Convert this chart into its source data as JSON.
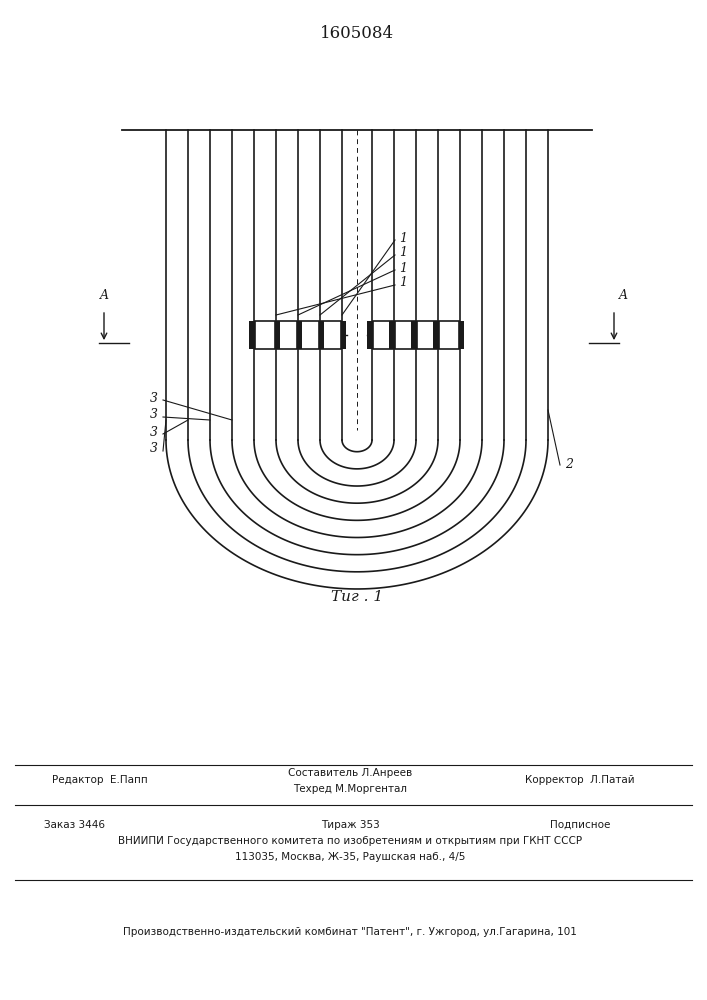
{
  "title": "1605084",
  "fig_label": "Τиг . 1",
  "background_color": "#ffffff",
  "line_color": "#1a1a1a",
  "page_width": 7.07,
  "page_height": 10.0,
  "footer_texts": {
    "editor": "Редактор  Е.Папп",
    "composer_title": "Составитель Л.Анреев",
    "techred": "Техред М.Моргентал",
    "corrector": "Корректор  Л.Патай",
    "order": "Заказ 3446",
    "tirazh": "Тираж 353",
    "podpisnoe": "Подписное",
    "vniip": "ВНИИПИ Государственного комитета по изобретениям и открытиям при ГКНТ СССР",
    "address": "113035, Москва, Ж-35, Раушская наб., 4/5",
    "publish": "Производственно-издательский комбинат \"Патент\", г. Ужгород, ул.Гагарина, 101"
  }
}
